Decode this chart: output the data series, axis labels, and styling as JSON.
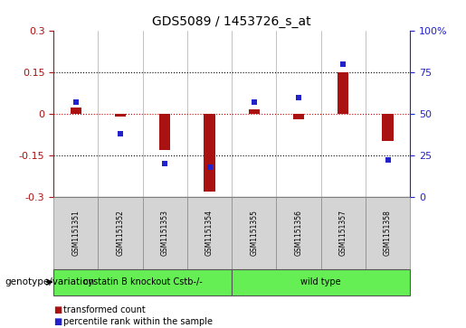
{
  "title": "GDS5089 / 1453726_s_at",
  "samples": [
    "GSM1151351",
    "GSM1151352",
    "GSM1151353",
    "GSM1151354",
    "GSM1151355",
    "GSM1151356",
    "GSM1151357",
    "GSM1151358"
  ],
  "red_values": [
    0.022,
    -0.008,
    -0.13,
    -0.28,
    0.018,
    -0.018,
    0.152,
    -0.098
  ],
  "blue_values": [
    57,
    38,
    20,
    18,
    57,
    60,
    80,
    22
  ],
  "ylim_left": [
    -0.3,
    0.3
  ],
  "ylim_right": [
    0,
    100
  ],
  "yticks_left": [
    -0.3,
    -0.15,
    0.0,
    0.15,
    0.3
  ],
  "ytick_labels_left": [
    "-0.3",
    "-0.15",
    "0",
    "0.15",
    "0.3"
  ],
  "yticks_right": [
    0,
    25,
    50,
    75,
    100
  ],
  "ytick_labels_right": [
    "0",
    "25",
    "50",
    "75",
    "100%"
  ],
  "group1_label": "cystatin B knockout Cstb-/-",
  "group2_label": "wild type",
  "group1_indices": [
    0,
    1,
    2,
    3
  ],
  "group2_indices": [
    4,
    5,
    6,
    7
  ],
  "group_color": "#66ee55",
  "bar_color": "#aa1111",
  "dot_color": "#2222cc",
  "zero_line_color": "#cc0000",
  "legend_red_label": "transformed count",
  "legend_blue_label": "percentile rank within the sample",
  "genotype_label": "genotype/variation",
  "sample_box_color": "#d4d4d4",
  "bar_width": 0.25
}
